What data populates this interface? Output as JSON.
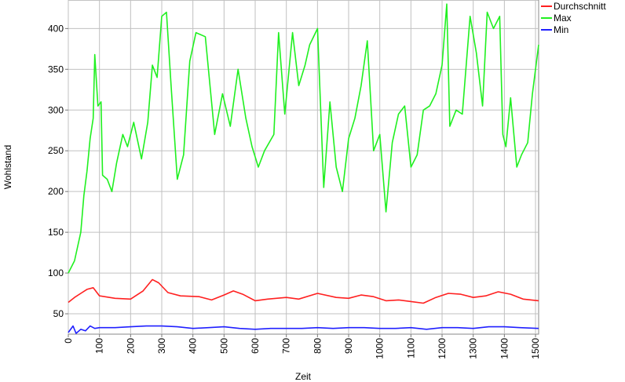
{
  "chart_data": {
    "type": "line",
    "xlabel": "Zeit",
    "ylabel": "Wohlstand",
    "xlim": [
      0,
      1510
    ],
    "ylim": [
      25,
      435
    ],
    "xticks": [
      0,
      100,
      200,
      300,
      400,
      500,
      600,
      700,
      800,
      900,
      1000,
      1100,
      1200,
      1300,
      1400,
      1500
    ],
    "yticks": [
      50,
      100,
      150,
      200,
      250,
      300,
      350,
      400
    ],
    "grid": true,
    "legend_position": "top-right",
    "series": [
      {
        "name": "Durchschnitt",
        "color": "#ff2020",
        "x": [
          0,
          20,
          40,
          60,
          80,
          100,
          150,
          200,
          240,
          270,
          290,
          320,
          360,
          420,
          460,
          500,
          530,
          560,
          600,
          640,
          700,
          740,
          800,
          860,
          900,
          940,
          980,
          1020,
          1060,
          1100,
          1140,
          1180,
          1220,
          1260,
          1300,
          1340,
          1380,
          1420,
          1460,
          1510
        ],
        "y": [
          64,
          70,
          75,
          80,
          82,
          72,
          69,
          68,
          78,
          92,
          88,
          76,
          72,
          71,
          67,
          73,
          78,
          74,
          66,
          68,
          70,
          68,
          75,
          70,
          69,
          73,
          71,
          66,
          67,
          65,
          63,
          70,
          75,
          74,
          70,
          72,
          77,
          74,
          68,
          66
        ]
      },
      {
        "name": "Max",
        "color": "#20f020",
        "x": [
          0,
          20,
          40,
          50,
          60,
          70,
          80,
          85,
          95,
          105,
          110,
          125,
          140,
          155,
          175,
          190,
          210,
          235,
          255,
          270,
          285,
          300,
          315,
          330,
          350,
          370,
          390,
          410,
          440,
          470,
          495,
          520,
          545,
          570,
          590,
          610,
          630,
          660,
          675,
          695,
          720,
          740,
          760,
          775,
          800,
          820,
          840,
          860,
          880,
          900,
          920,
          940,
          960,
          980,
          1000,
          1020,
          1040,
          1060,
          1080,
          1100,
          1120,
          1140,
          1160,
          1180,
          1200,
          1215,
          1225,
          1245,
          1265,
          1290,
          1310,
          1330,
          1345,
          1365,
          1385,
          1395,
          1405,
          1420,
          1440,
          1455,
          1475,
          1490,
          1510
        ],
        "y": [
          100,
          115,
          150,
          195,
          225,
          265,
          290,
          368,
          305,
          310,
          220,
          215,
          200,
          235,
          270,
          255,
          285,
          240,
          285,
          355,
          340,
          415,
          420,
          330,
          215,
          245,
          360,
          395,
          390,
          270,
          320,
          280,
          350,
          290,
          255,
          230,
          250,
          270,
          395,
          295,
          395,
          330,
          355,
          380,
          400,
          205,
          310,
          230,
          200,
          265,
          290,
          330,
          385,
          250,
          270,
          175,
          260,
          295,
          305,
          230,
          245,
          300,
          305,
          320,
          355,
          430,
          280,
          300,
          295,
          415,
          370,
          305,
          420,
          400,
          415,
          270,
          255,
          315,
          230,
          245,
          260,
          320,
          380
        ]
      },
      {
        "name": "Min",
        "color": "#2020ff",
        "x": [
          0,
          15,
          25,
          40,
          55,
          70,
          85,
          100,
          150,
          200,
          250,
          300,
          350,
          400,
          450,
          500,
          550,
          600,
          650,
          700,
          750,
          800,
          850,
          900,
          950,
          1000,
          1050,
          1100,
          1150,
          1200,
          1250,
          1300,
          1350,
          1400,
          1450,
          1510
        ],
        "y": [
          27,
          35,
          26,
          31,
          29,
          35,
          32,
          33,
          33,
          34,
          35,
          35,
          34,
          32,
          33,
          34,
          32,
          31,
          32,
          32,
          32,
          33,
          32,
          33,
          33,
          32,
          32,
          33,
          31,
          33,
          33,
          32,
          34,
          34,
          33,
          32
        ]
      }
    ]
  }
}
